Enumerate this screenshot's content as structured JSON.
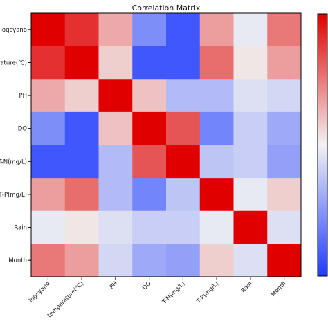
{
  "chart_data": {
    "type": "heatmap",
    "title": "Correlation Matrix",
    "variables": [
      "logcyano",
      "temperature(℃)",
      "PH",
      "DO",
      "T-N(mg/L)",
      "T-P(mg/L)",
      "Rain",
      "Month"
    ],
    "y_tick_labels": [
      "logcyano",
      "temperature(℃)",
      "PH",
      "DO",
      "T-N(mg/L)",
      "T-P(mg/L)",
      "Rain",
      "Month"
    ],
    "x_tick_labels": [
      "logcyano",
      "temperature(℃)",
      "PH",
      "DO",
      "T-N(mg/L)",
      "T-P(mg/L)",
      "Rain",
      "Month"
    ],
    "values": [
      [
        1.0,
        0.8,
        0.3,
        -0.55,
        -0.85,
        0.35,
        -0.05,
        0.5
      ],
      [
        0.8,
        1.0,
        0.15,
        -0.85,
        -0.85,
        0.55,
        0.05,
        0.35
      ],
      [
        0.3,
        0.15,
        1.0,
        0.2,
        -0.3,
        -0.3,
        -0.1,
        -0.15
      ],
      [
        -0.55,
        -0.85,
        0.2,
        1.0,
        0.65,
        -0.6,
        -0.2,
        -0.4
      ],
      [
        -0.85,
        -0.85,
        -0.3,
        0.65,
        1.0,
        -0.25,
        -0.2,
        -0.45
      ],
      [
        0.35,
        0.55,
        -0.3,
        -0.6,
        -0.25,
        1.0,
        -0.05,
        0.15
      ],
      [
        -0.05,
        0.05,
        -0.1,
        -0.2,
        -0.2,
        -0.05,
        1.0,
        -0.1
      ],
      [
        0.5,
        0.35,
        -0.15,
        -0.4,
        -0.45,
        0.15,
        -0.1,
        1.0
      ]
    ],
    "value_range": [
      -1,
      1
    ],
    "colormap": "bwr",
    "colors": {
      "low": "#1f3cff",
      "mid": "#f2f2f2",
      "high": "#e00000"
    },
    "colorbar": true
  }
}
